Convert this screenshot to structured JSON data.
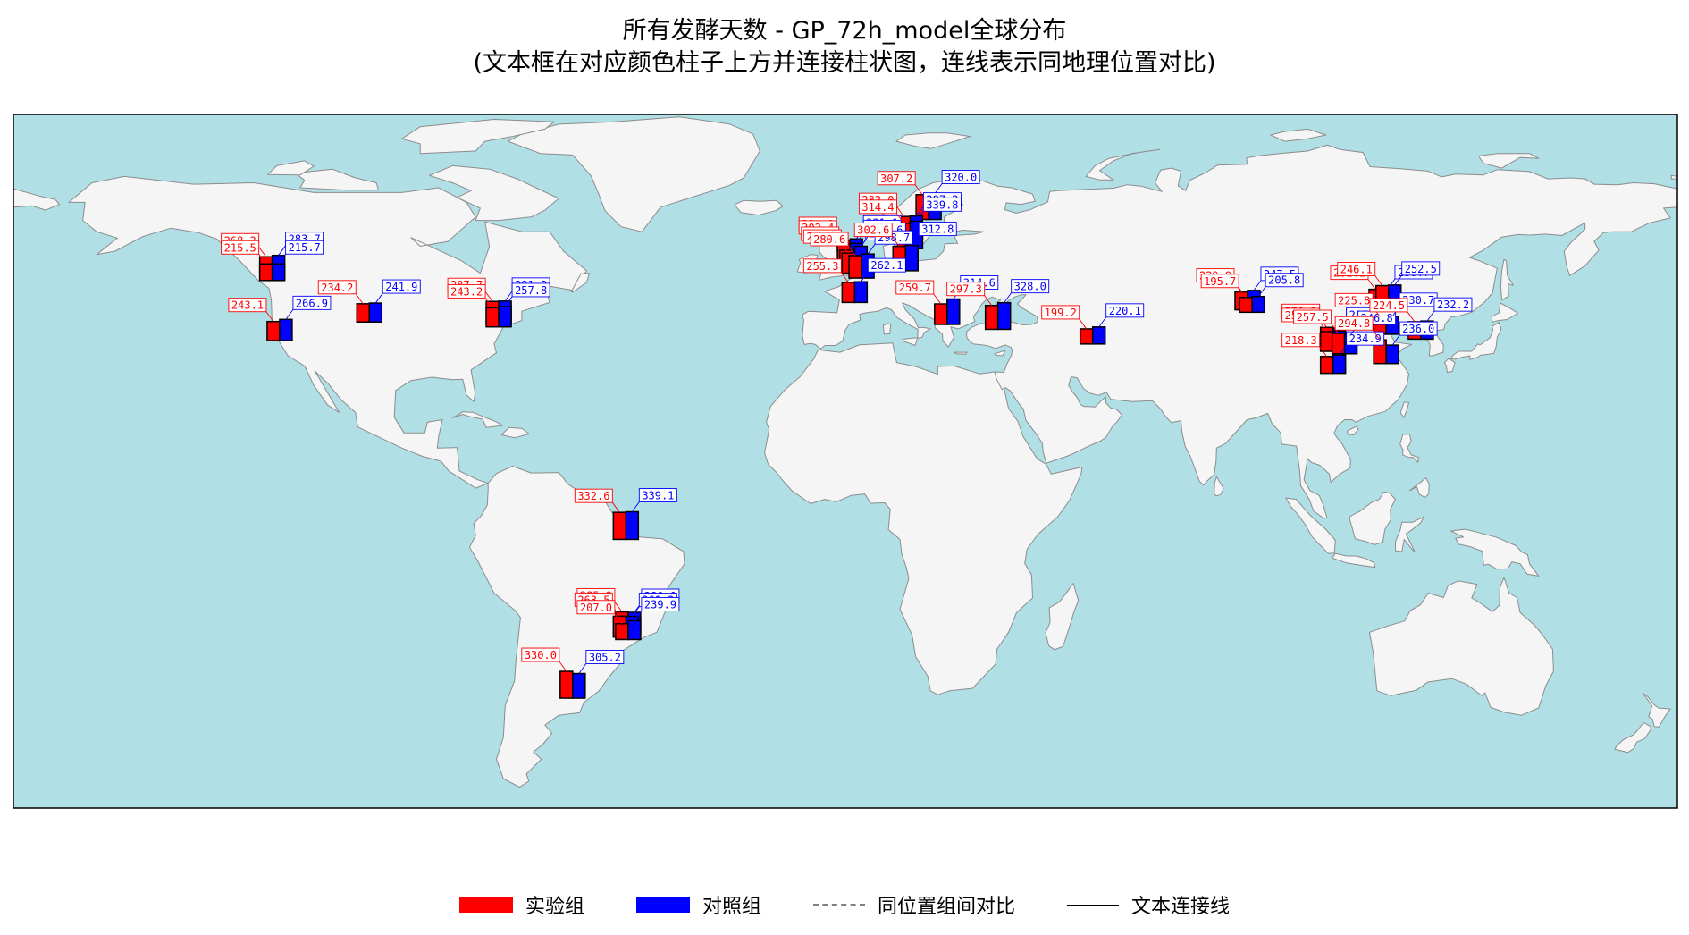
{
  "title": {
    "line1": "所有发酵天数 - GP_72h_model全球分布",
    "line2": "(文本框在对应颜色柱子上方并连接柱状图，连线表示同地理位置对比)"
  },
  "colors": {
    "experiment": "#ff0000",
    "control": "#0000ff",
    "ocean": "#b0dfe5",
    "land": "#f5f5f5",
    "coast": "#8c8c8c"
  },
  "legend": {
    "experiment": "实验组",
    "control": "对照组",
    "compare_line": "同位置组间对比",
    "text_line": "文本连接线"
  },
  "chart_data": {
    "type": "bar",
    "map_projection": "equirectangular",
    "lon_range": [
      -180,
      180
    ],
    "lat_range": [
      -58,
      84
    ],
    "grid": false,
    "legend_position": "bottom-center",
    "series": [
      {
        "name": "实验组",
        "color": "#ff0000"
      },
      {
        "name": "对照组",
        "color": "#0000ff"
      }
    ],
    "points": [
      {
        "lon": -124,
        "lat": 50.5,
        "exp": 268.2,
        "ctrl": 283.7
      },
      {
        "lon": -124,
        "lat": 50,
        "exp": 215.5,
        "ctrl": 215.7
      },
      {
        "lon": -122.4,
        "lat": 37.7,
        "exp": 243.1,
        "ctrl": 266.9
      },
      {
        "lon": -103,
        "lat": 41.5,
        "exp": 234.2,
        "ctrl": 241.9
      },
      {
        "lon": -75,
        "lat": 41,
        "exp": 287.7,
        "ctrl": 291.3
      },
      {
        "lon": -75,
        "lat": 40.5,
        "exp": 243.2,
        "ctrl": 257.8
      },
      {
        "lon": -47.5,
        "lat": -3,
        "exp": 332.6,
        "ctrl": 339.1
      },
      {
        "lon": -47,
        "lat": -22.5,
        "exp": 285.9,
        "ctrl": 280.0
      },
      {
        "lon": -47.5,
        "lat": -23,
        "exp": 263.5,
        "ctrl": 261.2
      },
      {
        "lon": -47,
        "lat": -23.5,
        "exp": 207.0,
        "ctrl": 239.9
      },
      {
        "lon": -59,
        "lat": -35.5,
        "exp": 330.0,
        "ctrl": 305.2
      },
      {
        "lon": 1,
        "lat": 53,
        "exp": 314.1,
        "ctrl": 331.1
      },
      {
        "lon": 1,
        "lat": 52.5,
        "exp": 302.4,
        "ctrl": 307.4
      },
      {
        "lon": 1.5,
        "lat": 52,
        "exp": 259.0,
        "ctrl": 264.7
      },
      {
        "lon": 2,
        "lat": 51.5,
        "exp": 255.0,
        "ctrl": 330.6
      },
      {
        "lon": 3.5,
        "lat": 50.5,
        "exp": 280.6,
        "ctrl": 298.7
      },
      {
        "lon": 2,
        "lat": 45.5,
        "exp": 255.3,
        "ctrl": 262.1
      },
      {
        "lon": 18,
        "lat": 62.5,
        "exp": 307.2,
        "ctrl": 320.0
      },
      {
        "lon": 14,
        "lat": 58.5,
        "exp": 282.0,
        "ctrl": 287.2
      },
      {
        "lon": 14,
        "lat": 56.5,
        "exp": 314.4,
        "ctrl": 339.8
      },
      {
        "lon": 13,
        "lat": 52,
        "exp": 302.6,
        "ctrl": 312.8
      },
      {
        "lon": 22,
        "lat": 41,
        "exp": 259.7,
        "ctrl": 314.6
      },
      {
        "lon": 33,
        "lat": 40,
        "exp": 297.3,
        "ctrl": 328.0
      },
      {
        "lon": 53.5,
        "lat": 37,
        "exp": 199.2,
        "ctrl": 220.1
      },
      {
        "lon": 87,
        "lat": 44,
        "exp": 229.9,
        "ctrl": 247.5
      },
      {
        "lon": 88,
        "lat": 43.5,
        "exp": 195.7,
        "ctrl": 205.8
      },
      {
        "lon": 105.5,
        "lat": 36,
        "exp": 270.3,
        "ctrl": 262.5
      },
      {
        "lon": 105.5,
        "lat": 35.5,
        "exp": 250.8,
        "ctrl": 257.5
      },
      {
        "lon": 105.5,
        "lat": 31,
        "exp": 218.3,
        "ctrl": 234.9
      },
      {
        "lon": 108,
        "lat": 35,
        "exp": 257.5,
        "ctrl": 246.8
      },
      {
        "lon": 116,
        "lat": 44.5,
        "exp": 232.2,
        "ctrl": 238.7
      },
      {
        "lon": 117.5,
        "lat": 45,
        "exp": 246.1,
        "ctrl": 252.5
      },
      {
        "lon": 117,
        "lat": 39,
        "exp": 225.8,
        "ctrl": 230.7
      },
      {
        "lon": 117,
        "lat": 33,
        "exp": 294.8,
        "ctrl": 236.0
      },
      {
        "lon": 124.5,
        "lat": 38,
        "exp": 224.5,
        "ctrl": 232.2
      }
    ],
    "labels": [
      {
        "i": 0,
        "t": "268.2",
        "c": "exp"
      },
      {
        "i": 0,
        "t": "283.7",
        "c": "ctrl"
      },
      {
        "i": 1,
        "t": "215.5",
        "c": "exp"
      },
      {
        "i": 1,
        "t": "215.7",
        "c": "ctrl"
      },
      {
        "i": 2,
        "t": "243.1",
        "c": "exp"
      },
      {
        "i": 2,
        "t": "266.9",
        "c": "ctrl"
      },
      {
        "i": 3,
        "t": "234.2",
        "c": "exp"
      },
      {
        "i": 3,
        "t": "241.9",
        "c": "ctrl"
      },
      {
        "i": 4,
        "t": "287.7",
        "c": "exp"
      },
      {
        "i": 4,
        "t": "291.3",
        "c": "ctrl"
      },
      {
        "i": 5,
        "t": "243.2",
        "c": "exp"
      },
      {
        "i": 5,
        "t": "257.8",
        "c": "ctrl"
      },
      {
        "i": 6,
        "t": "332.6",
        "c": "exp"
      },
      {
        "i": 6,
        "t": "339.1",
        "c": "ctrl"
      },
      {
        "i": 7,
        "t": "285.9",
        "c": "exp"
      },
      {
        "i": 7,
        "t": "280.0",
        "c": "ctrl"
      },
      {
        "i": 8,
        "t": "263.5",
        "c": "exp"
      },
      {
        "i": 8,
        "t": "261.2",
        "c": "ctrl"
      },
      {
        "i": 9,
        "t": "207.0",
        "c": "exp"
      },
      {
        "i": 9,
        "t": "239.9",
        "c": "ctrl"
      },
      {
        "i": 10,
        "t": "330.0",
        "c": "exp"
      },
      {
        "i": 10,
        "t": "305.2",
        "c": "ctrl"
      },
      {
        "i": 11,
        "t": "314.1",
        "c": "exp"
      },
      {
        "i": 11,
        "t": "331.1",
        "c": "ctrl"
      },
      {
        "i": 12,
        "t": "302.4",
        "c": "exp"
      },
      {
        "i": 12,
        "t": "307.4",
        "c": "ctrl"
      },
      {
        "i": 13,
        "t": "259.0",
        "c": "exp"
      },
      {
        "i": 13,
        "t": "264.7",
        "c": "ctrl"
      },
      {
        "i": 14,
        "t": "255.0",
        "c": "exp"
      },
      {
        "i": 14,
        "t": "330.6",
        "c": "ctrl"
      },
      {
        "i": 15,
        "t": "280.6",
        "c": "exp"
      },
      {
        "i": 15,
        "t": "298.7",
        "c": "ctrl"
      },
      {
        "i": 16,
        "t": "255.3",
        "c": "exp"
      },
      {
        "i": 16,
        "t": "262.1",
        "c": "ctrl"
      },
      {
        "i": 17,
        "t": "307.2",
        "c": "exp"
      },
      {
        "i": 17,
        "t": "320.0",
        "c": "ctrl"
      },
      {
        "i": 18,
        "t": "282.0",
        "c": "exp"
      },
      {
        "i": 18,
        "t": "287.2",
        "c": "ctrl"
      },
      {
        "i": 19,
        "t": "314.4",
        "c": "exp"
      },
      {
        "i": 19,
        "t": "339.8",
        "c": "ctrl"
      },
      {
        "i": 20,
        "t": "302.6",
        "c": "exp"
      },
      {
        "i": 20,
        "t": "312.8",
        "c": "ctrl"
      },
      {
        "i": 21,
        "t": "259.7",
        "c": "exp"
      },
      {
        "i": 21,
        "t": "314.6",
        "c": "ctrl"
      },
      {
        "i": 22,
        "t": "297.3",
        "c": "exp"
      },
      {
        "i": 22,
        "t": "328.0",
        "c": "ctrl"
      },
      {
        "i": 23,
        "t": "199.2",
        "c": "exp"
      },
      {
        "i": 23,
        "t": "220.1",
        "c": "ctrl"
      },
      {
        "i": 24,
        "t": "229.9",
        "c": "exp"
      },
      {
        "i": 24,
        "t": "247.5",
        "c": "ctrl"
      },
      {
        "i": 25,
        "t": "195.7",
        "c": "exp"
      },
      {
        "i": 25,
        "t": "205.8",
        "c": "ctrl"
      },
      {
        "i": 26,
        "t": "270.3",
        "c": "exp"
      },
      {
        "i": 26,
        "t": "262.5",
        "c": "ctrl"
      },
      {
        "i": 27,
        "t": "250.8",
        "c": "exp"
      },
      {
        "i": 27,
        "t": "257.5",
        "c": "ctrl"
      },
      {
        "i": 28,
        "t": "218.3",
        "c": "exp"
      },
      {
        "i": 28,
        "t": "234.9",
        "c": "ctrl"
      },
      {
        "i": 29,
        "t": "257.5",
        "c": "exp"
      },
      {
        "i": 29,
        "t": "246.8",
        "c": "ctrl"
      },
      {
        "i": 30,
        "t": "232.2",
        "c": "exp"
      },
      {
        "i": 30,
        "t": "238.7",
        "c": "ctrl"
      },
      {
        "i": 31,
        "t": "246.1",
        "c": "exp"
      },
      {
        "i": 31,
        "t": "252.5",
        "c": "ctrl"
      },
      {
        "i": 32,
        "t": "225.8",
        "c": "exp"
      },
      {
        "i": 32,
        "t": "230.7",
        "c": "ctrl"
      },
      {
        "i": 33,
        "t": "294.8",
        "c": "exp"
      },
      {
        "i": 33,
        "t": "236.0",
        "c": "ctrl"
      },
      {
        "i": 34,
        "t": "224.5",
        "c": "exp"
      },
      {
        "i": 34,
        "t": "232.2",
        "c": "ctrl"
      }
    ]
  }
}
